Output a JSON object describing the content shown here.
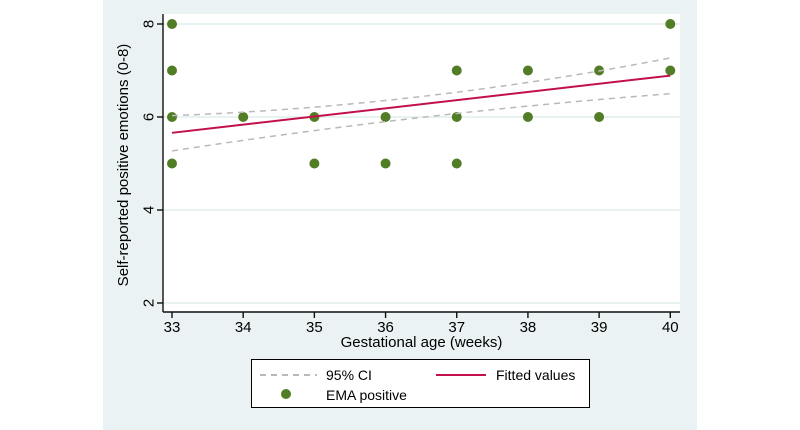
{
  "chart_data": {
    "type": "scatter",
    "title": "",
    "xlabel": "Gestational age (weeks)",
    "ylabel": "Self-reported positive emotions (0-8)",
    "xlim": [
      32.9,
      40.1
    ],
    "ylim": [
      1.8,
      8.2
    ],
    "xticks": [
      "33",
      "34",
      "35",
      "36",
      "37",
      "38",
      "39",
      "40"
    ],
    "xtick_values": [
      33,
      34,
      35,
      36,
      37,
      38,
      39,
      40
    ],
    "yticks": [
      "2",
      "4",
      "6",
      "8"
    ],
    "ytick_values": [
      2,
      4,
      6,
      8
    ],
    "grid": "horizontal-at-yticks",
    "legend_position": "bottom-center-box",
    "series": [
      {
        "name": "EMA positive",
        "type": "scatter",
        "color": "#527d27",
        "points": [
          [
            33,
            5
          ],
          [
            33,
            6
          ],
          [
            33,
            7
          ],
          [
            33,
            8
          ],
          [
            34,
            6
          ],
          [
            35,
            5
          ],
          [
            35,
            6
          ],
          [
            36,
            5
          ],
          [
            36,
            6
          ],
          [
            37,
            5
          ],
          [
            37,
            6
          ],
          [
            37,
            7
          ],
          [
            38,
            6
          ],
          [
            38,
            7
          ],
          [
            39,
            6
          ],
          [
            39,
            7
          ],
          [
            40,
            7
          ],
          [
            40,
            8
          ]
        ]
      },
      {
        "name": "Fitted values",
        "type": "line",
        "color": "#c2104c",
        "points": [
          [
            33,
            5.66
          ],
          [
            40,
            6.89
          ]
        ]
      },
      {
        "name": "95% CI",
        "type": "dashed-band-outline",
        "color": "#b9b9b9",
        "upper": [
          [
            33,
            6.03
          ],
          [
            36.5,
            6.44
          ],
          [
            40,
            7.27
          ]
        ],
        "lower": [
          [
            33,
            5.27
          ],
          [
            36.5,
            5.99
          ],
          [
            40,
            6.5
          ]
        ]
      }
    ]
  },
  "legend": {
    "ci_label": "95% CI",
    "fitted_label": "Fitted values",
    "ema_label": "EMA positive"
  },
  "colors": {
    "canvas_background": "#eaf2f3",
    "plot_background": "#ffffff",
    "gridline": "#d9eae7",
    "axis": "#0f0f0f",
    "marker_green": "#527d27",
    "fitted_red": "#c2104c",
    "ci_gray": "#b9b9b9",
    "text": "#000000"
  }
}
